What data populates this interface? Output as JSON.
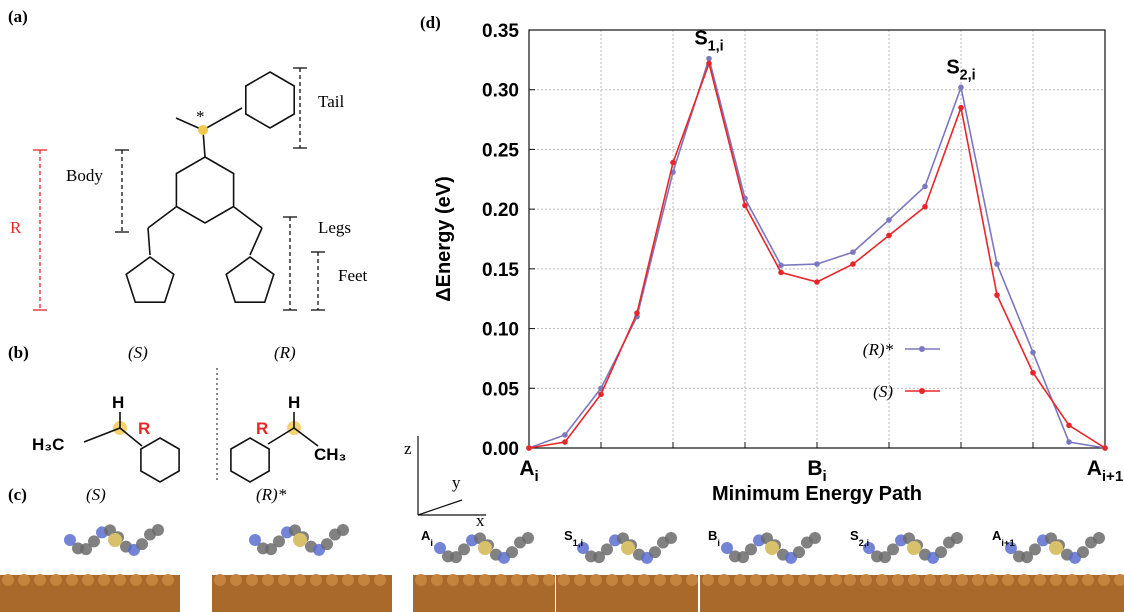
{
  "panels": {
    "a": "(a)",
    "b": "(b)",
    "c": "(c)",
    "d": "(d)"
  },
  "structure": {
    "star": "*",
    "tail": "Tail",
    "body": "Body",
    "legs": "Legs",
    "feet": "Feet",
    "r": "R"
  },
  "chirality": {
    "s": "(S)",
    "r": "(R)",
    "s_h": "H",
    "s_ch3": "H₃C",
    "s_r": "R",
    "r_h": "H",
    "r_r": "R",
    "r_ch3": "CH₃"
  },
  "adsorbed": {
    "s": "(S)",
    "r": "(R)*"
  },
  "axes_icon": {
    "z": "z",
    "y": "y",
    "x": "x"
  },
  "frames": [
    {
      "main": "A",
      "sub": "i"
    },
    {
      "main": "S",
      "sub": "1,i"
    },
    {
      "main": "B",
      "sub": "i"
    },
    {
      "main": "S",
      "sub": "2,i"
    },
    {
      "main": "A",
      "sub": "i+1"
    }
  ],
  "chart_data": {
    "type": "line",
    "ylabel": "ΔEnergy (eV)",
    "xlabel": "Minimum Energy Path",
    "x": [
      0,
      1,
      2,
      3,
      4,
      5,
      6,
      7,
      8,
      9,
      10,
      11,
      12,
      13,
      14,
      15,
      16
    ],
    "xlim": [
      0,
      16
    ],
    "xgrid": [
      0,
      2,
      4,
      6,
      8,
      10,
      12,
      14,
      16
    ],
    "xtick_labels": [
      {
        "value": 0,
        "main": "A",
        "sub": "i"
      },
      {
        "value": 8,
        "main": "B",
        "sub": "i"
      },
      {
        "value": 16,
        "main": "A",
        "sub": "i+1"
      }
    ],
    "ylim": [
      0,
      0.35
    ],
    "yticks": [
      {
        "value": 0,
        "label": "0.00"
      },
      0.05,
      {
        "value": 0.1,
        "label": "0.10"
      },
      0.15,
      {
        "value": 0.2,
        "label": "0.20"
      },
      0.25,
      {
        "value": 0.3,
        "label": "0.30"
      },
      0.35
    ],
    "grid": true,
    "legend": "center-right",
    "annotations": [
      {
        "main": "S",
        "sub": "1,i",
        "x": 5
      },
      {
        "main": "S",
        "sub": "2,i",
        "x": 12
      }
    ],
    "series": [
      {
        "name": "(R)*",
        "color": "#7b78c0",
        "values": [
          0.0,
          0.011,
          0.05,
          0.11,
          0.231,
          0.326,
          0.209,
          0.153,
          0.154,
          0.164,
          0.191,
          0.219,
          0.302,
          0.154,
          0.08,
          0.005,
          0.0
        ]
      },
      {
        "name": "(S)",
        "color": "#e8262a",
        "values": [
          0.0,
          0.005,
          0.045,
          0.113,
          0.239,
          0.322,
          0.203,
          0.147,
          0.139,
          0.154,
          0.178,
          0.202,
          0.285,
          0.128,
          0.063,
          0.019,
          0.0
        ]
      }
    ]
  }
}
